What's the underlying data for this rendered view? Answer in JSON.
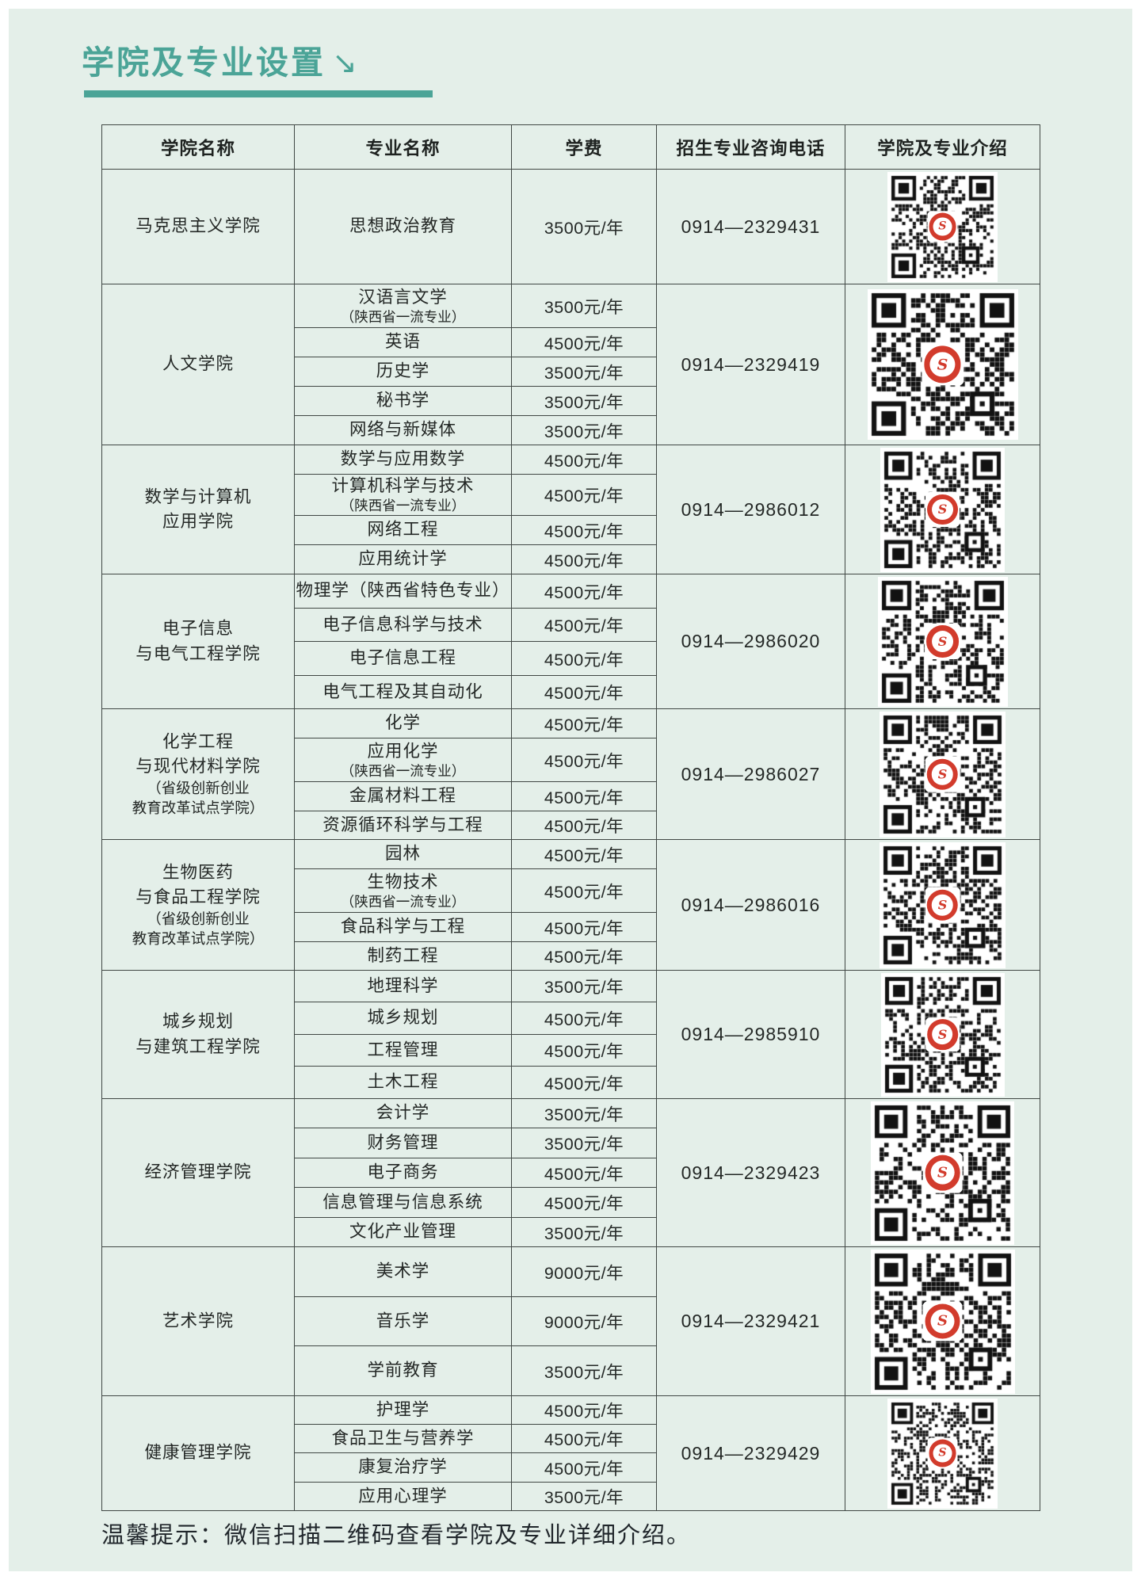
{
  "page": {
    "title": "学院及专业设置",
    "title_arrow": "↘",
    "footer_note": "温馨提示：微信扫描二维码查看学院及专业详细介绍。"
  },
  "colors": {
    "accent_teal": "#4ba497",
    "page_background": "#e4efe9",
    "table_border": "#404744",
    "qr_logo_red": "#d23b2c",
    "text": "#242826"
  },
  "icons": {
    "title_arrow": "southeast-arrow",
    "qr": "qr-code-with-university-seal"
  },
  "table": {
    "headers": [
      "学院名称",
      "专业名称",
      "学费",
      "招生专业咨询电话",
      "学院及专业介绍"
    ],
    "groups": [
      {
        "college": {
          "lines": [
            "马克思主义学院"
          ],
          "notes": []
        },
        "phone": "0914—2329431",
        "majors": [
          {
            "name": "思想政治教育",
            "fee": "3500元/年"
          }
        ]
      },
      {
        "college": {
          "lines": [
            "人文学院"
          ],
          "notes": []
        },
        "phone": "0914—2329419",
        "majors": [
          {
            "name": "汉语言文学",
            "note": "（陕西省一流专业）",
            "fee": "3500元/年"
          },
          {
            "name": "英语",
            "fee": "4500元/年"
          },
          {
            "name": "历史学",
            "fee": "3500元/年"
          },
          {
            "name": "秘书学",
            "fee": "3500元/年"
          },
          {
            "name": "网络与新媒体",
            "fee": "3500元/年"
          }
        ]
      },
      {
        "college": {
          "lines": [
            "数学与计算机",
            "应用学院"
          ],
          "notes": []
        },
        "phone": "0914—2986012",
        "majors": [
          {
            "name": "数学与应用数学",
            "fee": "4500元/年"
          },
          {
            "name": "计算机科学与技术",
            "note": "（陕西省一流专业）",
            "fee": "4500元/年"
          },
          {
            "name": "网络工程",
            "fee": "4500元/年"
          },
          {
            "name": "应用统计学",
            "fee": "4500元/年"
          }
        ]
      },
      {
        "college": {
          "lines": [
            "电子信息",
            "与电气工程学院"
          ],
          "notes": []
        },
        "phone": "0914—2986020",
        "majors": [
          {
            "name": "物理学（陕西省特色专业）",
            "fee": "4500元/年"
          },
          {
            "name": "电子信息科学与技术",
            "fee": "4500元/年"
          },
          {
            "name": "电子信息工程",
            "fee": "4500元/年"
          },
          {
            "name": "电气工程及其自动化",
            "fee": "4500元/年"
          }
        ]
      },
      {
        "college": {
          "lines": [
            "化学工程",
            "与现代材料学院"
          ],
          "notes": [
            "（省级创新创业",
            "教育改革试点学院）"
          ]
        },
        "phone": "0914—2986027",
        "majors": [
          {
            "name": "化学",
            "fee": "4500元/年"
          },
          {
            "name": "应用化学",
            "note": "（陕西省一流专业）",
            "fee": "4500元/年"
          },
          {
            "name": "金属材料工程",
            "fee": "4500元/年"
          },
          {
            "name": "资源循环科学与工程",
            "fee": "4500元/年"
          }
        ]
      },
      {
        "college": {
          "lines": [
            "生物医药",
            "与食品工程学院"
          ],
          "notes": [
            "（省级创新创业",
            "教育改革试点学院）"
          ]
        },
        "phone": "0914—2986016",
        "majors": [
          {
            "name": "园林",
            "fee": "4500元/年"
          },
          {
            "name": "生物技术",
            "note": "（陕西省一流专业）",
            "fee": "4500元/年"
          },
          {
            "name": "食品科学与工程",
            "fee": "4500元/年"
          },
          {
            "name": "制药工程",
            "fee": "4500元/年"
          }
        ]
      },
      {
        "college": {
          "lines": [
            "城乡规划",
            "与建筑工程学院"
          ],
          "notes": []
        },
        "phone": "0914—2985910",
        "majors": [
          {
            "name": "地理科学",
            "fee": "3500元/年"
          },
          {
            "name": "城乡规划",
            "fee": "4500元/年"
          },
          {
            "name": "工程管理",
            "fee": "4500元/年"
          },
          {
            "name": "土木工程",
            "fee": "4500元/年"
          }
        ]
      },
      {
        "college": {
          "lines": [
            "经济管理学院"
          ],
          "notes": []
        },
        "phone": "0914—2329423",
        "majors": [
          {
            "name": "会计学",
            "fee": "3500元/年"
          },
          {
            "name": "财务管理",
            "fee": "3500元/年"
          },
          {
            "name": "电子商务",
            "fee": "4500元/年"
          },
          {
            "name": "信息管理与信息系统",
            "fee": "4500元/年"
          },
          {
            "name": "文化产业管理",
            "fee": "3500元/年"
          }
        ]
      },
      {
        "college": {
          "lines": [
            "艺术学院"
          ],
          "notes": []
        },
        "phone": "0914—2329421",
        "majors": [
          {
            "name": "美术学",
            "fee": "9000元/年"
          },
          {
            "name": "音乐学",
            "fee": "9000元/年"
          },
          {
            "name": "学前教育",
            "fee": "3500元/年"
          }
        ]
      },
      {
        "college": {
          "lines": [
            "健康管理学院"
          ],
          "notes": []
        },
        "phone": "0914—2329429",
        "majors": [
          {
            "name": "护理学",
            "fee": "4500元/年"
          },
          {
            "name": "食品卫生与营养学",
            "fee": "4500元/年"
          },
          {
            "name": "康复治疗学",
            "fee": "4500元/年"
          },
          {
            "name": "应用心理学",
            "fee": "3500元/年"
          }
        ]
      }
    ]
  }
}
